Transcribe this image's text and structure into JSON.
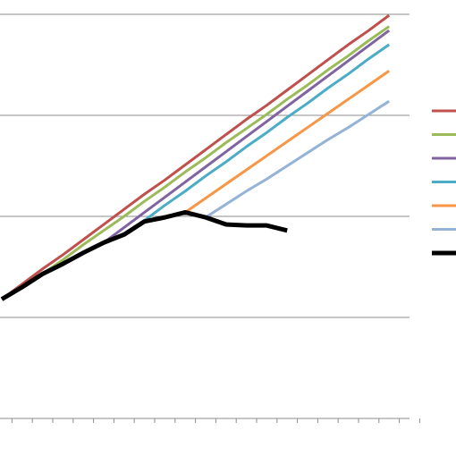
{
  "chart_data": {
    "type": "line",
    "categories": [
      null,
      null,
      null,
      null,
      null,
      null,
      null,
      null,
      null,
      null,
      null,
      null,
      null,
      null,
      null,
      null,
      null,
      null,
      null,
      null,
      null
    ],
    "series": [
      {
        "color": "#c0504d",
        "width": 3,
        "values": [
          1.18,
          1.33,
          1.48,
          1.62,
          1.77,
          1.92,
          2.07,
          2.22,
          2.36,
          2.51,
          2.66,
          2.81,
          2.96,
          3.1,
          3.25,
          3.4,
          3.55,
          3.7,
          3.84,
          3.99,
          null
        ]
      },
      {
        "color": "#9bbb59",
        "width": 3,
        "values": [
          null,
          null,
          1.43,
          1.57,
          1.72,
          1.86,
          2.0,
          2.15,
          2.29,
          2.44,
          2.58,
          2.73,
          2.87,
          3.01,
          3.16,
          3.3,
          3.45,
          3.59,
          3.74,
          3.88,
          null
        ]
      },
      {
        "color": "#8064a2",
        "width": 3,
        "values": [
          null,
          null,
          null,
          null,
          null,
          1.74,
          1.89,
          2.04,
          2.19,
          2.34,
          2.49,
          2.64,
          2.79,
          2.94,
          3.09,
          3.24,
          3.39,
          3.54,
          3.69,
          3.84,
          null
        ]
      },
      {
        "color": "#4bacc6",
        "width": 3,
        "values": [
          null,
          null,
          null,
          null,
          null,
          null,
          1.82,
          1.96,
          2.11,
          2.25,
          2.4,
          2.54,
          2.69,
          2.83,
          2.98,
          3.12,
          3.27,
          3.41,
          3.56,
          3.7,
          null
        ]
      },
      {
        "color": "#f79646",
        "width": 3,
        "values": [
          null,
          null,
          null,
          null,
          null,
          null,
          null,
          null,
          null,
          2.04,
          2.18,
          2.32,
          2.46,
          2.6,
          2.74,
          2.88,
          3.02,
          3.16,
          3.3,
          3.44,
          null
        ]
      },
      {
        "color": "#95b3d7",
        "width": 3,
        "values": [
          null,
          null,
          null,
          null,
          null,
          null,
          null,
          null,
          null,
          null,
          1.99,
          2.12,
          2.25,
          2.37,
          2.5,
          2.63,
          2.76,
          2.88,
          3.01,
          3.14,
          null
        ]
      },
      {
        "color": "#000000",
        "width": 5,
        "values": [
          1.18,
          1.3,
          1.43,
          1.53,
          1.64,
          1.74,
          1.82,
          1.95,
          1.99,
          2.04,
          1.99,
          1.92,
          1.91,
          1.91,
          1.86,
          null,
          null,
          null,
          null,
          null,
          null
        ]
      }
    ],
    "ylim": [
      0,
      4
    ],
    "yticks": [
      1,
      2,
      3,
      4
    ],
    "grid": true
  }
}
